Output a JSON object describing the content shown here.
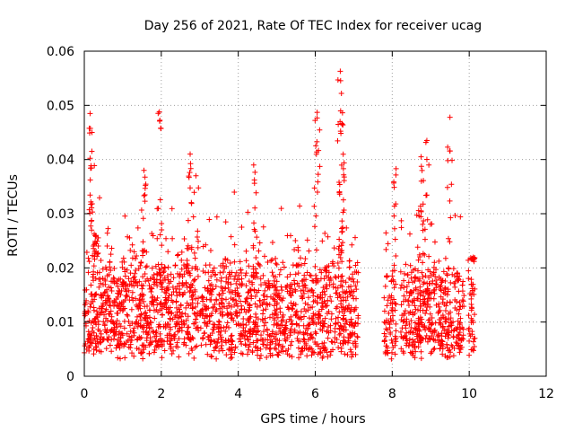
{
  "colors": {
    "marker": "#ff0000",
    "grid": "#a0a0a0",
    "axis": "#000000"
  },
  "chart_data": {
    "type": "scatter",
    "title": "Day 256 of 2021, Rate Of TEC Index for receiver ucag",
    "xlabel": "GPS time / hours",
    "ylabel": "ROTI / TECUs",
    "xlim": [
      0,
      12
    ],
    "ylim": [
      0,
      0.06
    ],
    "xticks": [
      0,
      2,
      4,
      6,
      8,
      10,
      12
    ],
    "xtick_labels": [
      "0",
      "2",
      "4",
      "6",
      "8",
      "10",
      "12"
    ],
    "yticks": [
      0,
      0.01,
      0.02,
      0.03,
      0.04,
      0.05,
      0.06
    ],
    "ytick_labels": [
      "0",
      "0.01",
      "0.02",
      "0.03",
      "0.04",
      "0.05",
      "0.06"
    ],
    "grid": true,
    "marker": "+",
    "series": [
      {
        "name": "ROTI",
        "data_window": [
          0,
          10.15
        ],
        "data_gaps": [
          [
            7.12,
            7.78
          ],
          [
            8.1,
            8.22
          ],
          [
            9.87,
            9.97
          ]
        ],
        "typical_range": [
          0.005,
          0.02
        ],
        "peaks": [
          {
            "x": 0.15,
            "y": 0.0485
          },
          {
            "x": 0.2,
            "y": 0.045
          },
          {
            "x": 0.3,
            "y": 0.026
          },
          {
            "x": 1.55,
            "y": 0.038
          },
          {
            "x": 1.95,
            "y": 0.0488
          },
          {
            "x": 2.75,
            "y": 0.041
          },
          {
            "x": 2.9,
            "y": 0.037
          },
          {
            "x": 4.4,
            "y": 0.039
          },
          {
            "x": 6.05,
            "y": 0.0487
          },
          {
            "x": 6.65,
            "y": 0.0563
          },
          {
            "x": 6.68,
            "y": 0.0522
          },
          {
            "x": 6.7,
            "y": 0.0465
          },
          {
            "x": 8.1,
            "y": 0.0383
          },
          {
            "x": 8.75,
            "y": 0.0405
          },
          {
            "x": 8.9,
            "y": 0.0435
          },
          {
            "x": 9.5,
            "y": 0.0478
          },
          {
            "x": 10.1,
            "y": 0.0215
          }
        ]
      }
    ]
  }
}
